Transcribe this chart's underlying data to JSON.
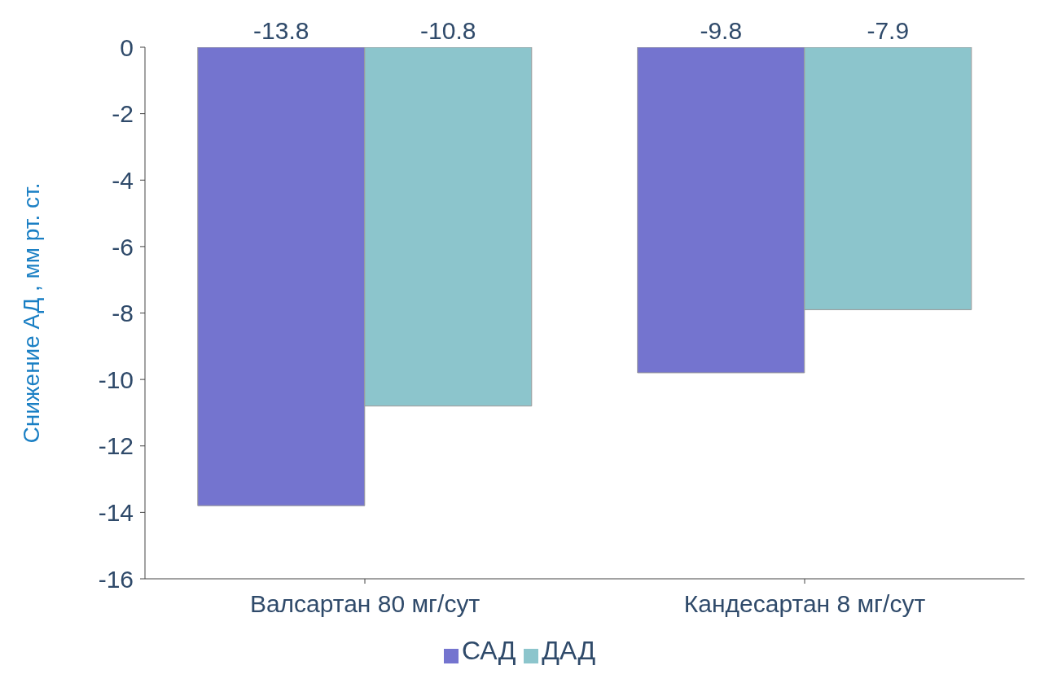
{
  "chart_data": {
    "type": "bar",
    "ylabel": "Снижение АД , мм рт. ст.",
    "categories": [
      "Валсартан 80 мг/сут",
      "Кандесартан 8 мг/сут"
    ],
    "series": [
      {
        "name": "САД",
        "color": "#7474cf",
        "values": [
          -13.8,
          -9.8
        ]
      },
      {
        "name": "ДАД",
        "color": "#8cc5cc",
        "values": [
          -10.8,
          -7.9
        ]
      }
    ],
    "ylim": [
      -16,
      0
    ],
    "yticks": [
      0,
      -2,
      -4,
      -6,
      -8,
      -10,
      -12,
      -14,
      -16
    ],
    "data_labels": true,
    "grid": false,
    "legend": "bottom"
  }
}
